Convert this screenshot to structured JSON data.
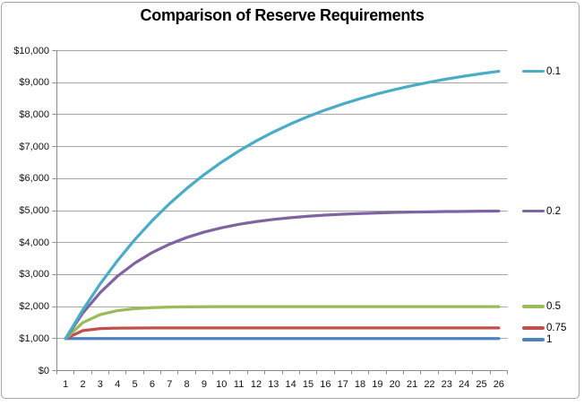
{
  "chart_data": {
    "type": "line",
    "title": "Comparison of Reserve Requirements",
    "xlabel": "",
    "ylabel": "",
    "grid": true,
    "legend_position": "right of line ends",
    "ylim": [
      0,
      10000
    ],
    "x": [
      1,
      2,
      3,
      4,
      5,
      6,
      7,
      8,
      9,
      10,
      11,
      12,
      13,
      14,
      15,
      16,
      17,
      18,
      19,
      20,
      21,
      22,
      23,
      24,
      25,
      26
    ],
    "xtick_labels": [
      "1",
      "2",
      "3",
      "4",
      "5",
      "6",
      "7",
      "8",
      "9",
      "10",
      "11",
      "12",
      "13",
      "14",
      "15",
      "16",
      "17",
      "18",
      "19",
      "20",
      "21",
      "22",
      "23",
      "24",
      "25",
      "26"
    ],
    "ytick_values": [
      0,
      1000,
      2000,
      3000,
      4000,
      5000,
      6000,
      7000,
      8000,
      9000,
      10000
    ],
    "ytick_labels": [
      "$0",
      "$1,000",
      "$2,000",
      "$3,000",
      "$4,000",
      "$5,000",
      "$6,000",
      "$7,000",
      "$8,000",
      "$9,000",
      "$10,000"
    ],
    "series": [
      {
        "name": "1",
        "color": "#4F81BD",
        "values": [
          1000,
          1000,
          1000,
          1000,
          1000,
          1000,
          1000,
          1000,
          1000,
          1000,
          1000,
          1000,
          1000,
          1000,
          1000,
          1000,
          1000,
          1000,
          1000,
          1000,
          1000,
          1000,
          1000,
          1000,
          1000,
          1000
        ]
      },
      {
        "name": "0.75",
        "color": "#C0504D",
        "values": [
          1000,
          1250,
          1312.5,
          1328.13,
          1332.03,
          1333.01,
          1333.25,
          1333.31,
          1333.33,
          1333.33,
          1333.33,
          1333.33,
          1333.33,
          1333.33,
          1333.33,
          1333.33,
          1333.33,
          1333.33,
          1333.33,
          1333.33,
          1333.33,
          1333.33,
          1333.33,
          1333.33,
          1333.33,
          1333.33
        ]
      },
      {
        "name": "0.5",
        "color": "#9BBB59",
        "values": [
          1000,
          1500,
          1750,
          1875,
          1937.5,
          1968.75,
          1984.38,
          1992.19,
          1996.09,
          1998.05,
          1999.02,
          1999.51,
          1999.76,
          1999.88,
          1999.94,
          1999.97,
          1999.98,
          1999.99,
          2000,
          2000,
          2000,
          2000,
          2000,
          2000,
          2000,
          2000
        ]
      },
      {
        "name": "0.2",
        "color": "#8064A2",
        "values": [
          1000,
          1800,
          2440,
          2952,
          3361.6,
          3689.28,
          3951.42,
          4161.14,
          4328.91,
          4463.13,
          4570.5,
          4656.4,
          4725.12,
          4780.1,
          4824.08,
          4859.26,
          4887.41,
          4909.93,
          4927.94,
          4942.35,
          4953.88,
          4963.11,
          4970.49,
          4976.39,
          4981.11,
          4984.89
        ]
      },
      {
        "name": "0.1",
        "color": "#4BACC6",
        "values": [
          1000,
          1900,
          2710,
          3439,
          4095.1,
          4685.59,
          5217.03,
          5695.33,
          6125.8,
          6513.22,
          6861.89,
          7175.7,
          7458.13,
          7712.32,
          7941.09,
          8146.98,
          8332.28,
          8499.05,
          8649.15,
          8784.23,
          8905.81,
          9015.23,
          9113.71,
          9202.34,
          9282.1,
          9353.89
        ]
      }
    ]
  },
  "colors": {
    "background": "#FFFFFF",
    "border": "#A6A6A6",
    "gridline": "#A6A6A6",
    "axis": "#8C8C8C",
    "title_text": "#000000",
    "axis_text": "#111111"
  }
}
